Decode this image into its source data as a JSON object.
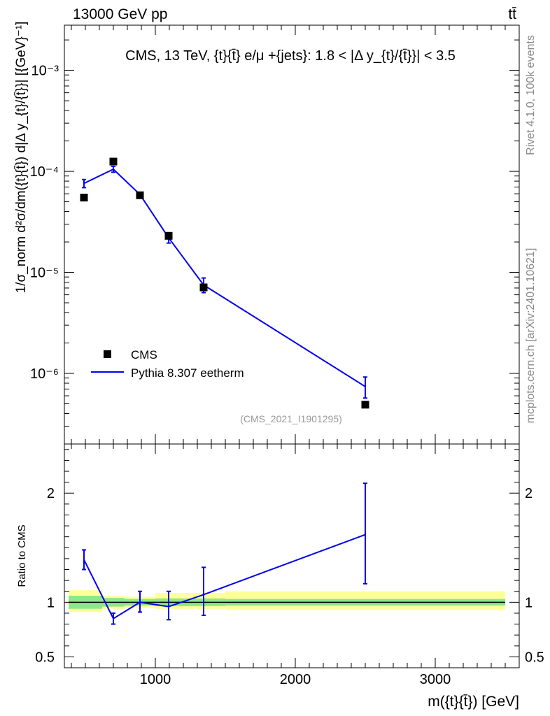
{
  "header": {
    "left": "13000 GeV pp",
    "right": "tt̄"
  },
  "side_labels": {
    "rivet": "Rivet 4.1.0,  100k events",
    "mcplots": "mcplots.cern.ch [arXiv:2401.10621]"
  },
  "colors": {
    "mc": "#0000ee",
    "data": "#000000",
    "band_inner": "#8ce68c",
    "band_outer": "#ffff99",
    "watermark": "#999999",
    "side_text": "#888888"
  },
  "chart_data": [
    {
      "type": "line",
      "panel": "main",
      "title": "CMS, 13 TeV, {t}{t̄} e/μ +{jets}: 1.8 < |Δ y_{t}/{t̄}}| < 3.5",
      "ylabel": "1/σ_norm d²σ/dm({t}{t̄}) d|Δ y_{t}/{t̄}}| [{GeV}⁻¹]",
      "xlabel": "m({t}{t̄}) [GeV]",
      "yscale": "log",
      "xlim": [
        350,
        3600
      ],
      "ylim": [
        2e-07,
        0.0028
      ],
      "yticks": [
        "10⁻⁶",
        "10⁻⁵",
        "10⁻⁴",
        "10⁻³"
      ],
      "watermark": "(CMS_2021_I1901295)",
      "legend": {
        "placement": "bottom-left",
        "entries": [
          "CMS",
          "Pythia 8.307 eetherm"
        ]
      },
      "series": [
        {
          "name": "CMS",
          "kind": "points",
          "x": [
            490,
            700,
            890,
            1095,
            1345,
            2500
          ],
          "y": [
            5.5e-05,
            0.000125,
            5.8e-05,
            2.3e-05,
            7.1e-06,
            4.9e-07
          ]
        },
        {
          "name": "Pythia 8.307 eetherm",
          "kind": "line",
          "x": [
            490,
            700,
            890,
            1095,
            1345,
            2500
          ],
          "y": [
            7.6e-05,
            0.000105,
            5.9e-05,
            2.2e-05,
            7.5e-06,
            7.4e-07
          ],
          "err_low": [
            6.9e-05,
            9.8e-05,
            5.6e-05,
            1.95e-05,
            6.3e-06,
            5.7e-07
          ],
          "err_high": [
            8.3e-05,
            0.000112,
            6.2e-05,
            2.45e-05,
            8.8e-06,
            9.2e-07
          ]
        }
      ]
    },
    {
      "type": "line",
      "panel": "ratio",
      "ylabel": "Ratio to CMS",
      "xlabel": "m({t}{t̄}) [GeV]",
      "xlim": [
        350,
        3600
      ],
      "ylim": [
        0.4,
        2.45
      ],
      "xticks": [
        "1000",
        "2000",
        "3000"
      ],
      "yticks": [
        "0.5",
        "1",
        "2"
      ],
      "reference": 1,
      "band_edges": [
        380,
        620,
        780,
        1000,
        1500,
        3500
      ],
      "band_inner": [
        [
          0.94,
          1.06
        ],
        [
          0.96,
          1.04
        ],
        [
          0.97,
          1.03
        ],
        [
          0.965,
          1.035
        ],
        [
          0.97,
          1.03
        ]
      ],
      "band_outer": [
        [
          0.91,
          1.11
        ],
        [
          0.94,
          1.06
        ],
        [
          0.95,
          1.05
        ],
        [
          0.94,
          1.085
        ],
        [
          0.93,
          1.1
        ]
      ],
      "series": [
        {
          "name": "Pythia 8.307 eetherm / CMS",
          "x": [
            490,
            700,
            890,
            1095,
            1345,
            2500
          ],
          "y": [
            1.39,
            0.85,
            1.0,
            0.96,
            1.07,
            1.62
          ],
          "err_low": [
            1.3,
            0.8,
            0.91,
            0.84,
            0.88,
            1.17
          ],
          "err_high": [
            1.48,
            0.9,
            1.1,
            1.1,
            1.32,
            2.09
          ]
        }
      ]
    }
  ]
}
